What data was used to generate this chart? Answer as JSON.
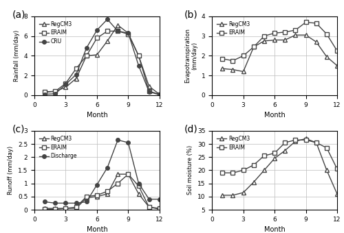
{
  "months": [
    1,
    2,
    3,
    4,
    5,
    6,
    7,
    8,
    9,
    10,
    11,
    12
  ],
  "rainfall": {
    "RegCM3": [
      0.3,
      0.4,
      0.8,
      1.7,
      4.0,
      4.1,
      5.5,
      7.1,
      6.3,
      4.0,
      0.9,
      0.1
    ],
    "ERAIM": [
      0.35,
      0.4,
      1.2,
      2.7,
      4.0,
      5.8,
      6.5,
      6.5,
      6.2,
      4.0,
      0.4,
      0.1
    ],
    "CRU": [
      0.1,
      0.15,
      1.1,
      2.1,
      4.8,
      6.6,
      7.7,
      6.5,
      6.3,
      3.0,
      0.35,
      0.05
    ]
  },
  "evapotranspiration": {
    "RegCM3": [
      1.35,
      1.3,
      1.2,
      2.45,
      2.75,
      2.8,
      2.8,
      3.05,
      3.05,
      2.7,
      1.95,
      1.5
    ],
    "ERAIM": [
      1.85,
      1.75,
      2.0,
      2.45,
      3.0,
      3.15,
      3.2,
      3.3,
      3.7,
      3.65,
      3.1,
      2.25
    ]
  },
  "runoff": {
    "RegCM3": [
      0.05,
      0.05,
      0.05,
      0.05,
      0.45,
      0.5,
      0.6,
      1.35,
      1.35,
      0.6,
      0.1,
      0.02
    ],
    "ERAIM": [
      0.02,
      0.02,
      0.05,
      0.1,
      0.5,
      0.55,
      0.7,
      1.0,
      1.35,
      0.9,
      0.1,
      0.05
    ],
    "Discharge": [
      0.3,
      0.25,
      0.25,
      0.25,
      0.3,
      0.95,
      1.6,
      2.65,
      2.55,
      1.0,
      0.4,
      0.4
    ]
  },
  "soil_moisture": {
    "RegCM3": [
      10.5,
      10.5,
      11.5,
      15.5,
      20.0,
      24.5,
      27.5,
      31.0,
      32.0,
      30.5,
      20.0,
      11.0
    ],
    "ERAIM": [
      19.0,
      19.0,
      20.0,
      22.0,
      25.5,
      26.5,
      30.5,
      31.5,
      31.5,
      30.5,
      28.5,
      20.5
    ]
  },
  "line_color": "#444444",
  "marker_triangle": "^",
  "marker_square": "s",
  "marker_circle": "o",
  "markersize": 4,
  "linewidth": 1.0,
  "grid_color": "#bbbbbb",
  "background": "#ffffff",
  "panel_labels": [
    "(a)",
    "(b)",
    "(c)",
    "(d)"
  ],
  "ylabels": [
    "Rainfall (mm/day)",
    "Evapotranspiration\n(mm/day)",
    "Runoff (mm/day)",
    "Soil moisture (%)"
  ],
  "xlabels": [
    "Month",
    "Month",
    "Month",
    "Month"
  ],
  "ylims_a": [
    0,
    8.0
  ],
  "ylims_b": [
    0,
    4.0
  ],
  "ylims_c": [
    0,
    3.0
  ],
  "ylims_d": [
    5.0,
    35.0
  ],
  "yticks_a": [
    0.0,
    2.0,
    4.0,
    6.0,
    8.0
  ],
  "yticks_b": [
    0.0,
    1.0,
    2.0,
    3.0,
    4.0
  ],
  "yticks_c": [
    0.0,
    0.5,
    1.0,
    1.5,
    2.0,
    2.5,
    3.0
  ],
  "yticks_d": [
    5.0,
    10.0,
    15.0,
    20.0,
    25.0,
    30.0,
    35.0
  ],
  "xticks": [
    0,
    3,
    6,
    9,
    12
  ]
}
